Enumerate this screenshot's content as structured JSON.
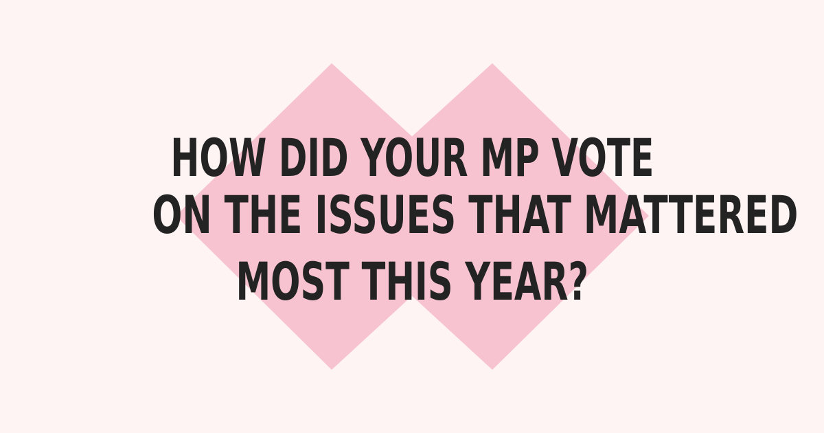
{
  "headline": {
    "lines": [
      "HOW DID YOUR MP VOTE",
      "ON THE ISSUES THAT MATTERED",
      "MOST THIS YEAR?"
    ]
  },
  "decoration": {
    "icon": "cross-x-icon",
    "color": "#f8c3d0"
  },
  "colors": {
    "background": "#fef4f3",
    "text": "#232323"
  }
}
